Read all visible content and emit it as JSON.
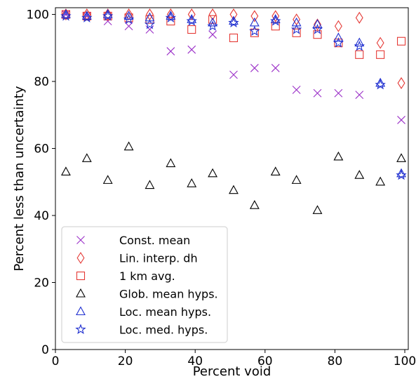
{
  "chart_data": {
    "type": "scatter",
    "xlabel": "Percent void",
    "ylabel": "Percent less than uncertainty",
    "xlim": [
      0,
      101
    ],
    "ylim": [
      0,
      102
    ],
    "xticks": [
      0,
      20,
      40,
      60,
      80,
      100
    ],
    "yticks": [
      0,
      20,
      40,
      60,
      80,
      100
    ],
    "grid": false,
    "legend_placement": "bottom-left",
    "x": [
      3,
      9,
      15,
      21,
      27,
      33,
      39,
      45,
      51,
      57,
      63,
      69,
      75,
      81,
      87,
      93,
      99
    ],
    "series": [
      {
        "name": "Const. mean",
        "marker": "x",
        "color": "#9b30c8",
        "values": [
          100,
          99.5,
          98,
          96.5,
          95.5,
          89,
          89.5,
          94,
          82,
          84,
          84,
          77.5,
          76.5,
          76.5,
          76,
          null,
          68.5
        ]
      },
      {
        "name": "Lin. interp. dh",
        "marker": "diamond",
        "color": "#e53935",
        "values": [
          100,
          100,
          100,
          100,
          100,
          100,
          100,
          100,
          100,
          99.5,
          99.5,
          98.5,
          97,
          96.5,
          99,
          91.5,
          79.5
        ]
      },
      {
        "name": "1 km avg.",
        "marker": "square",
        "color": "#e53935",
        "values": [
          100,
          99.5,
          99.5,
          99,
          98.5,
          98,
          95.5,
          98.5,
          93,
          94.5,
          96.5,
          94.5,
          94,
          91.5,
          88,
          88,
          92
        ]
      },
      {
        "name": "Glob. mean hyps.",
        "marker": "triangle",
        "color": "#000000",
        "values": [
          53,
          57,
          50.5,
          60.5,
          49,
          55.5,
          49.5,
          52.5,
          47.5,
          43,
          53,
          50.5,
          41.5,
          57.5,
          52,
          50,
          57
        ]
      },
      {
        "name": "Loc. mean hyps.",
        "marker": "triangle",
        "color": "#1f2fd0",
        "values": [
          100,
          99.5,
          100,
          99.5,
          99,
          99.5,
          98.5,
          97.5,
          98,
          97.5,
          98.5,
          97.5,
          97,
          93,
          91.5,
          79.5,
          52.5
        ]
      },
      {
        "name": "Loc. med. hyps.",
        "marker": "star",
        "color": "#1f2fd0",
        "values": [
          99.5,
          99,
          99.5,
          98.5,
          97,
          99,
          98,
          96.5,
          97.5,
          95,
          98,
          95.5,
          95.5,
          91.5,
          90.5,
          79,
          52
        ]
      }
    ]
  }
}
